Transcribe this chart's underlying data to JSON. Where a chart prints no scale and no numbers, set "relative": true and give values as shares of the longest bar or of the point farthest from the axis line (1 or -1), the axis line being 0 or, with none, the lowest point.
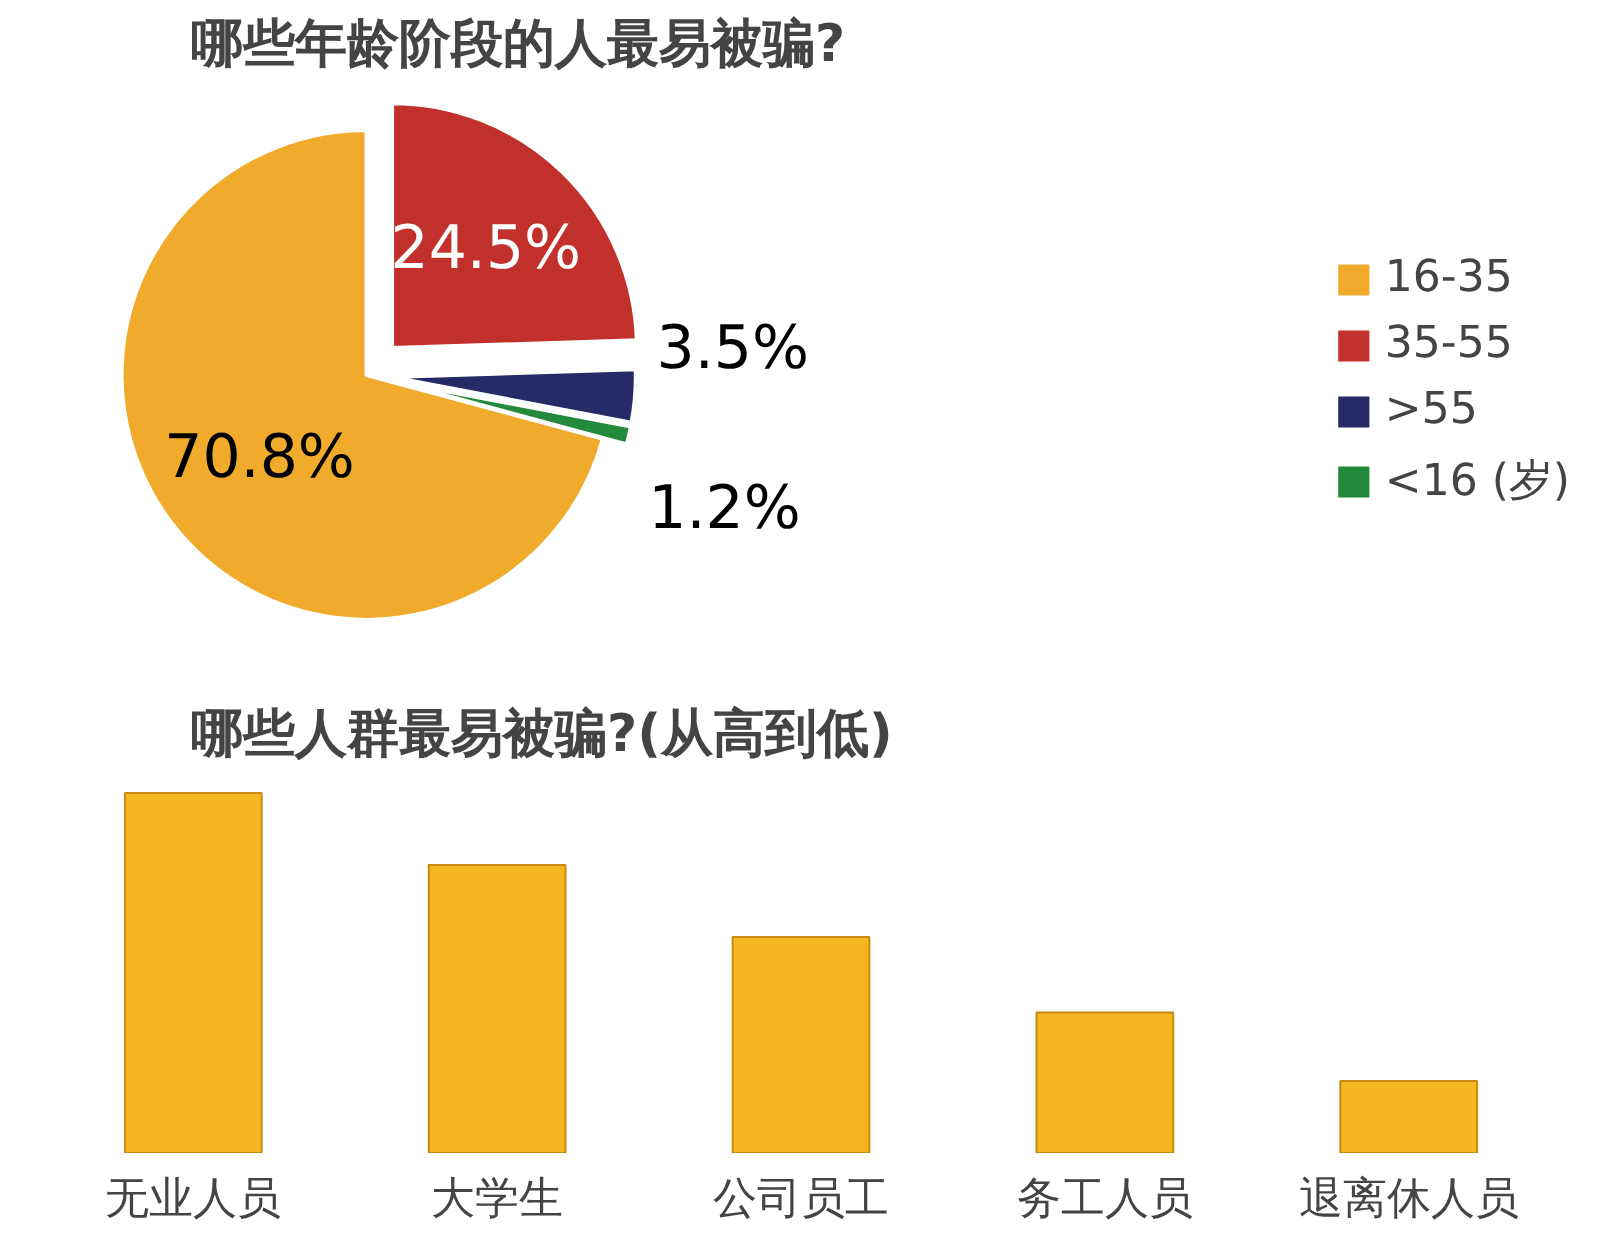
{
  "chart_data": [
    {
      "type": "pie",
      "title": "哪些年龄阶段的人最易被骗?",
      "categories": [
        "16-35",
        "35-55",
        ">55",
        "<16 (岁)"
      ],
      "values": [
        70.8,
        24.5,
        3.5,
        1.2
      ],
      "colors": [
        "#f0ab2c",
        "#c1302b",
        "#262a66",
        "#23893b"
      ],
      "value_labels": [
        "70.8%",
        "24.5%",
        "3.5%",
        "1.2%"
      ],
      "legend": "right"
    },
    {
      "type": "bar",
      "title": "哪些人群最易被骗?(从高到低)",
      "categories": [
        "无业人员",
        "大学生",
        "公司员工",
        "务工人员",
        "退离休人员"
      ],
      "values": [
        1,
        0.8,
        0.6,
        0.39,
        0.2
      ],
      "color": "#f5b621",
      "relative": true,
      "grid": false
    }
  ]
}
